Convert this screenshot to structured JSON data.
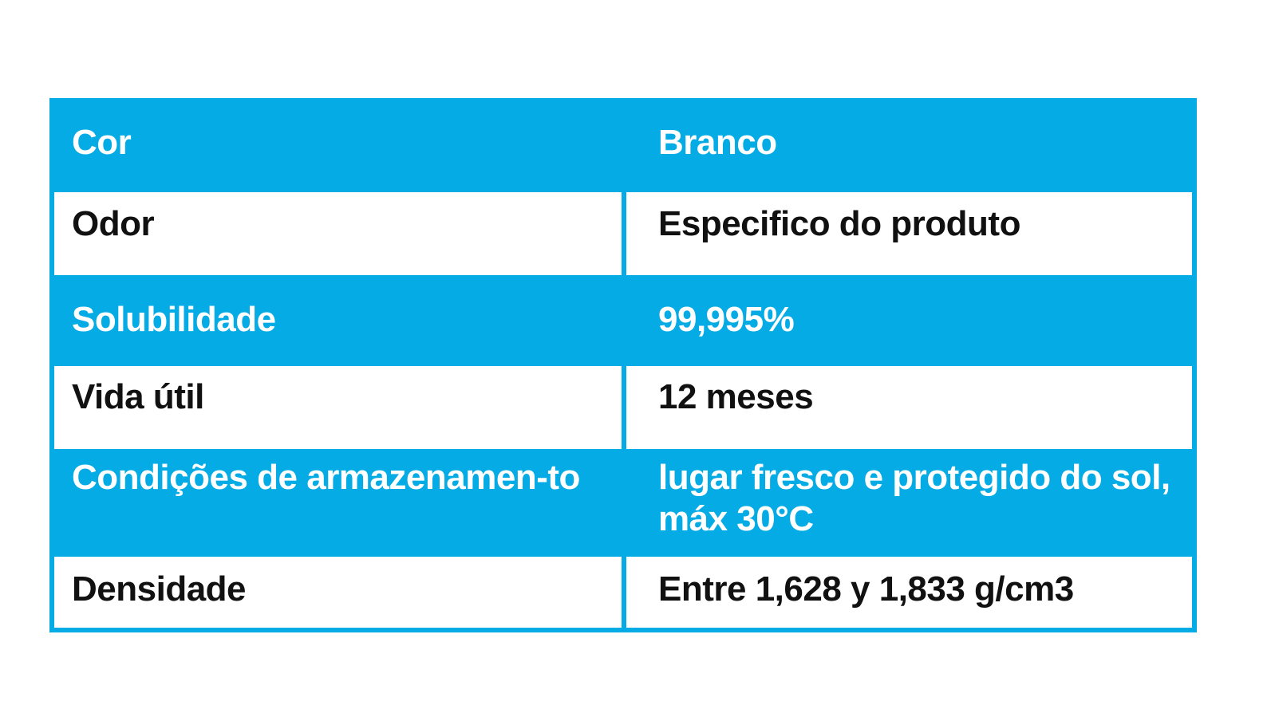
{
  "colors": {
    "accent": "#05ABE5",
    "white": "#FFFFFF",
    "text_dark": "#111111"
  },
  "table": {
    "rows": [
      {
        "label": "Cor",
        "value": "Branco",
        "style": "blue"
      },
      {
        "label": "Odor",
        "value": "Especifico do produto",
        "style": "white"
      },
      {
        "label": "Solubilidade",
        "value": "99,995%",
        "style": "blue"
      },
      {
        "label": "Vida útil",
        "value": "12 meses",
        "style": "white"
      },
      {
        "label": "Condições de armazenamen-to",
        "value": "lugar fresco e protegido do sol, máx 30°C",
        "style": "blue"
      },
      {
        "label": "Densidade",
        "value": "Entre 1,628 y 1,833 g/cm3",
        "style": "white"
      }
    ]
  }
}
